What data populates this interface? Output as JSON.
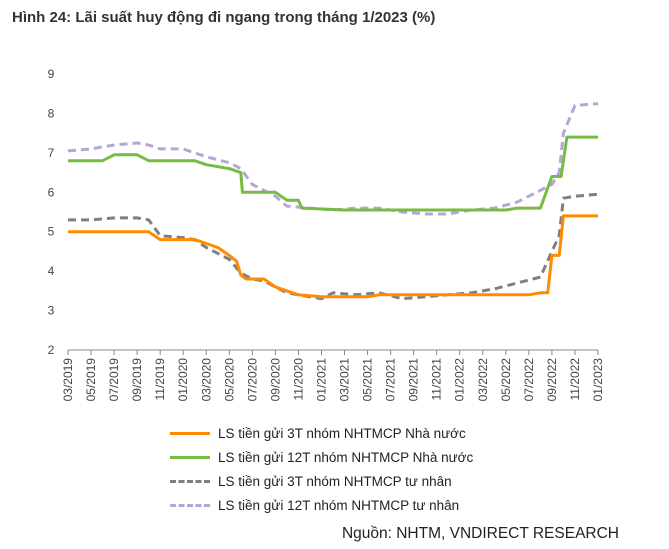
{
  "title": "Hình 24: Lãi suất huy động đi ngang trong tháng 1/2023 (%)",
  "source": "Nguồn: NHTM, VNDIRECT RESEARCH",
  "chart_data": {
    "type": "line",
    "ylim": [
      2,
      9
    ],
    "yticks": [
      "2",
      "3",
      "4",
      "5",
      "6",
      "7",
      "8",
      "9"
    ],
    "x_tick_labels": [
      "03/2019",
      "05/2019",
      "07/2019",
      "09/2019",
      "11/2019",
      "01/2020",
      "03/2020",
      "05/2020",
      "07/2020",
      "09/2020",
      "11/2020",
      "01/2021",
      "03/2021",
      "05/2021",
      "07/2021",
      "09/2021",
      "11/2021",
      "01/2022",
      "03/2022",
      "05/2022",
      "07/2022",
      "09/2022",
      "11/2022",
      "01/2023"
    ],
    "x_start": "2019-03",
    "x_end": "2023-01",
    "grid": false,
    "legend_position": "bottom",
    "series": [
      {
        "name": "LS tiền gửi 3T nhóm NHTMCP Nhà nước",
        "color": "#ff8c00",
        "style": "solid",
        "points": [
          [
            "2019-03",
            5.0
          ],
          [
            "2019-09",
            5.0
          ],
          [
            "2019-10",
            5.0
          ],
          [
            "2019-11",
            4.8
          ],
          [
            "2020-01",
            4.8
          ],
          [
            "2020-02",
            4.8
          ],
          [
            "2020-03",
            4.7
          ],
          [
            "2020-04",
            4.6
          ],
          [
            "2020-05",
            4.4
          ],
          [
            "2020-05-20",
            4.25
          ],
          [
            "2020-06",
            3.9
          ],
          [
            "2020-06-15",
            3.8
          ],
          [
            "2020-08",
            3.8
          ],
          [
            "2020-09",
            3.6
          ],
          [
            "2020-10",
            3.5
          ],
          [
            "2020-11",
            3.4
          ],
          [
            "2021-01",
            3.35
          ],
          [
            "2021-03",
            3.35
          ],
          [
            "2021-05",
            3.35
          ],
          [
            "2021-06",
            3.4
          ],
          [
            "2021-09",
            3.4
          ],
          [
            "2021-11",
            3.4
          ],
          [
            "2022-01",
            3.4
          ],
          [
            "2022-03",
            3.4
          ],
          [
            "2022-05",
            3.4
          ],
          [
            "2022-06",
            3.4
          ],
          [
            "2022-07",
            3.4
          ],
          [
            "2022-08",
            3.45
          ],
          [
            "2022-08-20",
            3.45
          ],
          [
            "2022-09",
            4.4
          ],
          [
            "2022-09-20",
            4.4
          ],
          [
            "2022-10",
            5.4
          ],
          [
            "2023-01",
            5.4
          ]
        ]
      },
      {
        "name": "LS tiền gửi 12T nhóm NHTMCP Nhà nước",
        "color": "#77bb44",
        "style": "solid",
        "points": [
          [
            "2019-03",
            6.8
          ],
          [
            "2019-06",
            6.8
          ],
          [
            "2019-07",
            6.95
          ],
          [
            "2019-09",
            6.95
          ],
          [
            "2019-10",
            6.8
          ],
          [
            "2019-12",
            6.8
          ],
          [
            "2020-02",
            6.8
          ],
          [
            "2020-03",
            6.7
          ],
          [
            "2020-05",
            6.6
          ],
          [
            "2020-06",
            6.5
          ],
          [
            "2020-06-05",
            6.0
          ],
          [
            "2020-09",
            6.0
          ],
          [
            "2020-10",
            5.8
          ],
          [
            "2020-11",
            5.8
          ],
          [
            "2020-11-10",
            5.6
          ],
          [
            "2021-03",
            5.55
          ],
          [
            "2021-06",
            5.55
          ],
          [
            "2021-09",
            5.55
          ],
          [
            "2022-01",
            5.55
          ],
          [
            "2022-05",
            5.55
          ],
          [
            "2022-06",
            5.6
          ],
          [
            "2022-08",
            5.6
          ],
          [
            "2022-09",
            6.4
          ],
          [
            "2022-09-25",
            6.4
          ],
          [
            "2022-10-10",
            7.4
          ],
          [
            "2023-01",
            7.4
          ]
        ]
      },
      {
        "name": "LS tiền gửi 3T nhóm NHTMCP tư nhân",
        "color": "#7f7f7f",
        "style": "dashed",
        "points": [
          [
            "2019-03",
            5.3
          ],
          [
            "2019-05",
            5.3
          ],
          [
            "2019-07",
            5.35
          ],
          [
            "2019-09",
            5.35
          ],
          [
            "2019-10",
            5.3
          ],
          [
            "2019-11",
            4.9
          ],
          [
            "2020-01",
            4.85
          ],
          [
            "2020-02",
            4.8
          ],
          [
            "2020-03",
            4.6
          ],
          [
            "2020-05",
            4.3
          ],
          [
            "2020-06",
            3.95
          ],
          [
            "2020-07",
            3.8
          ],
          [
            "2020-08",
            3.75
          ],
          [
            "2020-09",
            3.6
          ],
          [
            "2020-10",
            3.45
          ],
          [
            "2020-12",
            3.35
          ],
          [
            "2021-01",
            3.3
          ],
          [
            "2021-02",
            3.45
          ],
          [
            "2021-04",
            3.4
          ],
          [
            "2021-06",
            3.45
          ],
          [
            "2021-08",
            3.3
          ],
          [
            "2021-10",
            3.35
          ],
          [
            "2021-12",
            3.4
          ],
          [
            "2022-02",
            3.45
          ],
          [
            "2022-04",
            3.55
          ],
          [
            "2022-06",
            3.7
          ],
          [
            "2022-08",
            3.85
          ],
          [
            "2022-09",
            4.5
          ],
          [
            "2022-09-20",
            4.9
          ],
          [
            "2022-10",
            5.85
          ],
          [
            "2022-11",
            5.9
          ],
          [
            "2023-01",
            5.95
          ]
        ]
      },
      {
        "name": "LS tiền gửi 12T nhóm NHTMCP tư nhân",
        "color": "#b4a7d6",
        "style": "dashed",
        "points": [
          [
            "2019-03",
            7.05
          ],
          [
            "2019-05",
            7.1
          ],
          [
            "2019-07",
            7.2
          ],
          [
            "2019-09",
            7.25
          ],
          [
            "2019-10",
            7.2
          ],
          [
            "2019-11",
            7.1
          ],
          [
            "2020-01",
            7.1
          ],
          [
            "2020-03",
            6.9
          ],
          [
            "2020-05",
            6.75
          ],
          [
            "2020-06",
            6.6
          ],
          [
            "2020-07",
            6.2
          ],
          [
            "2020-08",
            6.05
          ],
          [
            "2020-09",
            5.9
          ],
          [
            "2020-10",
            5.65
          ],
          [
            "2020-12",
            5.6
          ],
          [
            "2021-02",
            5.55
          ],
          [
            "2021-04",
            5.6
          ],
          [
            "2021-06",
            5.6
          ],
          [
            "2021-08",
            5.5
          ],
          [
            "2021-10",
            5.45
          ],
          [
            "2021-12",
            5.45
          ],
          [
            "2022-02",
            5.55
          ],
          [
            "2022-04",
            5.6
          ],
          [
            "2022-06",
            5.75
          ],
          [
            "2022-08",
            6.05
          ],
          [
            "2022-09",
            6.2
          ],
          [
            "2022-09-20",
            6.5
          ],
          [
            "2022-10",
            7.5
          ],
          [
            "2022-11",
            8.2
          ],
          [
            "2023-01",
            8.25
          ]
        ]
      }
    ]
  }
}
